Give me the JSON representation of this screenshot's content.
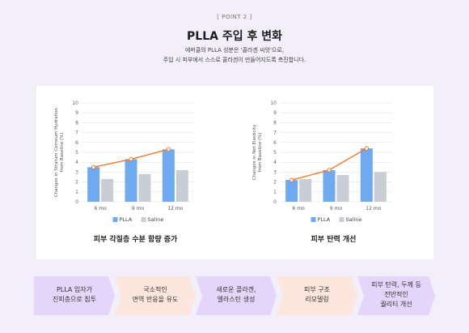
{
  "header": {
    "point_label": "[ POINT 2 ]",
    "title": "PLLA 주입 후 변화",
    "subtitle_line1": "에버클의 PLLA 성분은 '콜라겐 씨앗'으로,",
    "subtitle_line2": "주입 시 피부에서 스스로 콜라겐이 만들어지도록 촉진합니다."
  },
  "legend": {
    "plla": "PLLA",
    "saline": "Saline"
  },
  "colors": {
    "plla_bar": "#6fa9f0",
    "saline_bar": "#c9ced6",
    "trend_line": "#f07a28",
    "flow_purple": "#e4d6fb",
    "flow_peach": "#fde6de"
  },
  "chart_data": [
    {
      "type": "bar",
      "title": "피부 각질층 수분 함량 증가",
      "ylabel_line1": "Changes in Stratum Corneum Hydration",
      "ylabel_line2": "from Baseline (%)",
      "categories": [
        "6 mo",
        "9 mo",
        "12 mo"
      ],
      "series": [
        {
          "name": "PLLA",
          "values": [
            3.5,
            4.3,
            5.3
          ]
        },
        {
          "name": "Saline",
          "values": [
            2.3,
            2.8,
            3.2
          ]
        }
      ],
      "trend_series": "PLLA",
      "yticks": [
        "0",
        "1",
        "2",
        "3",
        "4",
        "5",
        "6",
        "7",
        "8",
        "9",
        "10"
      ],
      "ylim": [
        0,
        10
      ],
      "grid": true,
      "legend_position": "bottom"
    },
    {
      "type": "bar",
      "title": "피부 탄력 개선",
      "ylabel_line1": "Changes in Net Elasticity",
      "ylabel_line2": "from Baseline (%)",
      "categories": [
        "6 mo",
        "9 mo",
        "12 mo"
      ],
      "series": [
        {
          "name": "PLLA",
          "values": [
            2.2,
            3.2,
            5.4
          ]
        },
        {
          "name": "Saline",
          "values": [
            2.3,
            2.7,
            3.0
          ]
        }
      ],
      "trend_series": "PLLA",
      "yticks": [
        "0",
        "1",
        "2",
        "3",
        "4",
        "5",
        "6",
        "7",
        "8",
        "9",
        "10"
      ],
      "ylim": [
        0,
        10
      ],
      "grid": true,
      "legend_position": "bottom"
    }
  ],
  "flow": [
    {
      "text": "PLLA 입자가\n진피층으로 침투",
      "tone": "purple"
    },
    {
      "text": "국소적인\n면역 반응을 유도",
      "tone": "peach"
    },
    {
      "text": "새로운 콜라겐,\n엘라스틴 생성",
      "tone": "purple"
    },
    {
      "text": "피부 구조\n리모델링",
      "tone": "peach"
    },
    {
      "text": "피부 탄력, 두께 등\n전반적인\n퀄리티 개선",
      "tone": "purple"
    }
  ]
}
